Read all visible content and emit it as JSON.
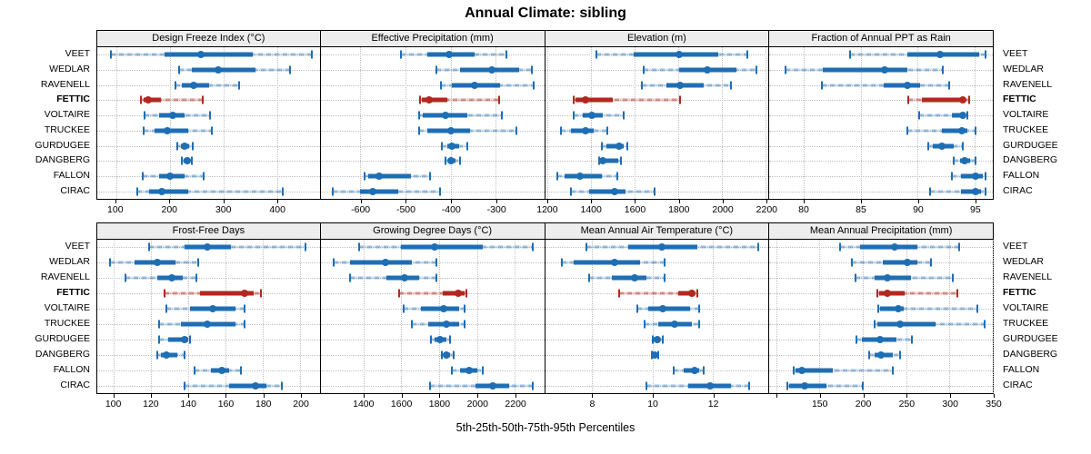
{
  "title": "Annual Climate: sibling",
  "caption": "5th-25th-50th-75th-95th Percentiles",
  "sites": [
    "VEET",
    "WEDLAR",
    "RAVENELL",
    "FETTIC",
    "VOLTAIRE",
    "TRUCKEE",
    "GURDUGEE",
    "DANGBERG",
    "FALLON",
    "CIRAC"
  ],
  "highlight_site": "FETTIC",
  "colors": {
    "normal": "#1f6eb4",
    "normal_range": "rgba(31,110,180,0.45)",
    "normal_range_alt": "rgba(31,110,180,0.18)",
    "highlight": "#b2281e",
    "highlight_range": "rgba(178,40,30,0.5)",
    "highlight_range_alt": "rgba(178,40,30,0.2)",
    "grid": "#bfbfbf",
    "strip_bg": "#ededed",
    "border": "#000000"
  },
  "chart_data": [
    {
      "type": "dotplot-percentiles",
      "band": "top",
      "title": "Design Freeze Index (°C)",
      "xlim": [
        65,
        480
      ],
      "ticks": [
        100,
        200,
        300,
        400
      ],
      "tick_labels": [
        "100",
        "200",
        "300",
        "400"
      ],
      "percentile_order": [
        "p5",
        "p25",
        "p50",
        "p75",
        "p95"
      ],
      "series": [
        [
          90,
          190,
          258,
          355,
          465
        ],
        [
          217,
          242,
          290,
          360,
          425
        ],
        [
          210,
          222,
          245,
          273,
          330
        ],
        [
          147,
          151,
          160,
          184,
          262
        ],
        [
          154,
          180,
          205,
          228,
          276
        ],
        [
          152,
          172,
          196,
          234,
          279
        ],
        [
          215,
          221,
          228,
          237,
          243
        ],
        [
          222,
          226,
          233,
          238,
          241
        ],
        [
          149,
          180,
          200,
          228,
          263
        ],
        [
          139,
          161,
          186,
          235,
          411
        ]
      ]
    },
    {
      "type": "dotplot-percentiles",
      "band": "top",
      "title": "Effective Precipitation (mm)",
      "xlim": [
        -688,
        -193
      ],
      "ticks": [
        -600,
        -500,
        -400,
        -300
      ],
      "tick_labels": [
        "-600",
        "-500",
        "-400",
        "-300"
      ],
      "percentile_order": [
        "p5",
        "p25",
        "p50",
        "p75",
        "p95"
      ],
      "series": [
        [
          -510,
          -451,
          -404,
          -347,
          -276
        ],
        [
          -431,
          -380,
          -309,
          -248,
          -221
        ],
        [
          -421,
          -397,
          -348,
          -291,
          -216
        ],
        [
          -468,
          -464,
          -448,
          -407,
          -292
        ],
        [
          -470,
          -461,
          -411,
          -363,
          -287
        ],
        [
          -470,
          -451,
          -399,
          -357,
          -255
        ],
        [
          -419,
          -408,
          -397,
          -382,
          -363
        ],
        [
          -411,
          -406,
          -399,
          -390,
          -380
        ],
        [
          -590,
          -583,
          -559,
          -488,
          -445
        ],
        [
          -662,
          -600,
          -572,
          -516,
          -424
        ]
      ]
    },
    {
      "type": "dotplot-percentiles",
      "band": "top",
      "title": "Elevation (m)",
      "xlim": [
        1190,
        2212
      ],
      "ticks": [
        1200,
        1400,
        1600,
        1800,
        2000,
        2200
      ],
      "tick_labels": [
        "1200",
        "1400",
        "1600",
        "1800",
        "2000",
        "2200"
      ],
      "percentile_order": [
        "p5",
        "p25",
        "p50",
        "p75",
        "p95"
      ],
      "series": [
        [
          1423,
          1594,
          1803,
          1984,
          2116
        ],
        [
          1643,
          1803,
          1932,
          2067,
          2155
        ],
        [
          1633,
          1747,
          1807,
          1914,
          2042
        ],
        [
          1320,
          1329,
          1375,
          1501,
          1807
        ],
        [
          1320,
          1364,
          1403,
          1455,
          1549
        ],
        [
          1264,
          1309,
          1374,
          1413,
          1473
        ],
        [
          1449,
          1470,
          1530,
          1550,
          1567
        ],
        [
          1439,
          1445,
          1456,
          1525,
          1539
        ],
        [
          1246,
          1281,
          1350,
          1448,
          1520
        ],
        [
          1309,
          1392,
          1510,
          1559,
          1691
        ]
      ]
    },
    {
      "type": "dotplot-percentiles",
      "band": "top",
      "title": "Fraction of Annual PPT as Rain",
      "xlim": [
        77,
        96.6
      ],
      "ticks": [
        80,
        85,
        90,
        95
      ],
      "tick_labels": [
        "80",
        "85",
        "90",
        "95"
      ],
      "percentile_order": [
        "p5",
        "p25",
        "p50",
        "p75",
        "p95"
      ],
      "series": [
        [
          84.1,
          89.1,
          92.0,
          95.4,
          96.0
        ],
        [
          78.4,
          81.7,
          87.1,
          89.1,
          92.2
        ],
        [
          81.6,
          87.0,
          89.1,
          90.2,
          92.8
        ],
        [
          89.2,
          90.4,
          94.0,
          94.2,
          94.5
        ],
        [
          90.1,
          93.0,
          94.0,
          94.2,
          94.4
        ],
        [
          89.1,
          92.1,
          93.9,
          94.4,
          95.1
        ],
        [
          90.9,
          91.3,
          92.1,
          93.2,
          94.0
        ],
        [
          93.2,
          93.7,
          94.1,
          94.6,
          95.1
        ],
        [
          93.0,
          93.8,
          95.1,
          95.7,
          96.0
        ],
        [
          91.1,
          93.8,
          95.1,
          95.6,
          96.0
        ]
      ]
    },
    {
      "type": "dotplot-percentiles",
      "band": "bottom",
      "title": "Frost-Free Days",
      "xlim": [
        91,
        210.5
      ],
      "ticks": [
        100,
        120,
        140,
        160,
        180,
        200
      ],
      "tick_labels": [
        "100",
        "120",
        "140",
        "160",
        "180",
        "200"
      ],
      "percentile_order": [
        "p5",
        "p25",
        "p50",
        "p75",
        "p95"
      ],
      "series": [
        [
          119,
          138,
          150,
          163,
          203
        ],
        [
          98,
          111,
          123,
          133,
          145
        ],
        [
          106,
          123,
          131,
          137,
          144
        ],
        [
          127,
          146,
          170,
          175,
          179
        ],
        [
          128,
          141,
          153,
          165,
          170
        ],
        [
          124,
          136,
          150,
          165,
          170
        ],
        [
          124,
          129,
          138,
          140,
          141
        ],
        [
          123,
          125,
          128,
          134,
          138
        ],
        [
          143,
          152,
          158,
          162,
          168
        ],
        [
          138,
          162,
          176,
          182,
          190
        ]
      ]
    },
    {
      "type": "dotplot-percentiles",
      "band": "bottom",
      "title": "Growing Degree Days (°C)",
      "xlim": [
        1175,
        2355
      ],
      "ticks": [
        1400,
        1600,
        1800,
        2000,
        2200
      ],
      "tick_labels": [
        "1400",
        "1600",
        "1800",
        "2000",
        "2200"
      ],
      "percentile_order": [
        "p5",
        "p25",
        "p50",
        "p75",
        "p95"
      ],
      "series": [
        [
          1380,
          1600,
          1775,
          2030,
          2293
        ],
        [
          1245,
          1330,
          1515,
          1655,
          1785
        ],
        [
          1330,
          1520,
          1620,
          1695,
          1785
        ],
        [
          1590,
          1820,
          1900,
          1933,
          1945
        ],
        [
          1613,
          1704,
          1824,
          1904,
          1933
        ],
        [
          1656,
          1744,
          1840,
          1904,
          1936
        ],
        [
          1757,
          1776,
          1805,
          1840,
          1859
        ],
        [
          1813,
          1824,
          1837,
          1859,
          1875
        ],
        [
          1869,
          1912,
          1960,
          2000,
          2032
        ],
        [
          1752,
          1992,
          2085,
          2168,
          2293
        ]
      ]
    },
    {
      "type": "dotplot-percentiles",
      "band": "bottom",
      "title": "Mean Annual Air Temperature (°C)",
      "xlim": [
        6.44,
        13.85
      ],
      "ticks": [
        8,
        10,
        12
      ],
      "tick_labels": [
        "8",
        "10",
        "12"
      ],
      "percentile_order": [
        "p5",
        "p25",
        "p50",
        "p75",
        "p95"
      ],
      "series": [
        [
          7.8,
          9.2,
          10.3,
          11.5,
          13.5
        ],
        [
          7.0,
          7.4,
          8.75,
          9.6,
          10.4
        ],
        [
          7.9,
          8.65,
          9.4,
          9.8,
          10.4
        ],
        [
          8.9,
          10.85,
          11.3,
          11.4,
          11.5
        ],
        [
          9.5,
          9.85,
          10.35,
          11.25,
          11.55
        ],
        [
          9.75,
          10.2,
          10.75,
          11.3,
          11.55
        ],
        [
          10.0,
          10.05,
          10.15,
          10.25,
          10.35
        ],
        [
          9.98,
          10.02,
          10.07,
          10.14,
          10.2
        ],
        [
          10.7,
          11.05,
          11.4,
          11.55,
          11.7
        ],
        [
          9.8,
          11.2,
          11.9,
          12.6,
          13.2
        ]
      ]
    },
    {
      "type": "dotplot-percentiles",
      "band": "bottom",
      "title": "Mean Annual Precipitation (mm)",
      "xlim": [
        92,
        350
      ],
      "ticks": [
        100,
        150,
        200,
        250,
        300,
        350
      ],
      "tick_labels": [
        "",
        "150",
        "200",
        "250",
        "300",
        "350"
      ],
      "percentile_order": [
        "p5",
        "p25",
        "p50",
        "p75",
        "p95"
      ],
      "series": [
        [
          174,
          197,
          237,
          263,
          311
        ],
        [
          187,
          223,
          251,
          263,
          279
        ],
        [
          191,
          213,
          228,
          256,
          304
        ],
        [
          217,
          219,
          228,
          248,
          309
        ],
        [
          218,
          220,
          241,
          247,
          332
        ],
        [
          214,
          217,
          243,
          284,
          341
        ],
        [
          192,
          199,
          220,
          239,
          257
        ],
        [
          207,
          213,
          221,
          235,
          243
        ],
        [
          120,
          122,
          130,
          165,
          235
        ],
        [
          113,
          115,
          133,
          158,
          200
        ]
      ]
    }
  ]
}
